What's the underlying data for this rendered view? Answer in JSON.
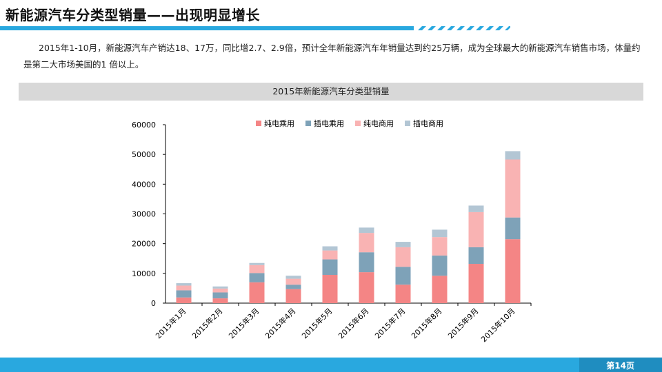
{
  "title": "新能源汽车分类型销量——出现明显增长",
  "description": "2015年1-10月，新能源汽车产销达18、17万，同比增2.7、2.9倍，预计全年新能源汽车年销量达到约25万辆，成为全球最大的新能源汽车销售市场，体量约是第二大市场美国的1 倍以上。",
  "page_number": "第14页",
  "colors": {
    "accent": "#29a8df",
    "header_bg": "#d8d8d8"
  },
  "chart_data": {
    "type": "bar",
    "stacked": true,
    "title": "2015年新能源汽车分类型销量",
    "categories": [
      "2015年1月",
      "2015年2月",
      "2015年3月",
      "2015年4月",
      "2015年5月",
      "2015年6月",
      "2015年7月",
      "2015年8月",
      "2015年9月",
      "2015年10月"
    ],
    "series": [
      {
        "name": "纯电乘用",
        "color": "#f48585",
        "values": [
          1900,
          1600,
          7000,
          4700,
          9500,
          10400,
          6200,
          9200,
          13200,
          21500
        ]
      },
      {
        "name": "插电乘用",
        "color": "#7ea2b8",
        "values": [
          2400,
          2000,
          3100,
          1500,
          5200,
          6700,
          6000,
          6800,
          5600,
          7300
        ]
      },
      {
        "name": "纯电商用",
        "color": "#f9b3b3",
        "values": [
          1600,
          1300,
          2700,
          2000,
          3000,
          6500,
          6600,
          6200,
          11800,
          19500
        ]
      },
      {
        "name": "插电商用",
        "color": "#b3c6d4",
        "values": [
          800,
          700,
          700,
          1000,
          1400,
          1800,
          1800,
          2500,
          2200,
          2800
        ]
      }
    ],
    "ylim": [
      0,
      60000
    ],
    "yticks": [
      0,
      10000,
      20000,
      30000,
      40000,
      50000,
      60000
    ],
    "xlabel": "",
    "ylabel": "",
    "legend_position": "top-center",
    "grid": false
  }
}
